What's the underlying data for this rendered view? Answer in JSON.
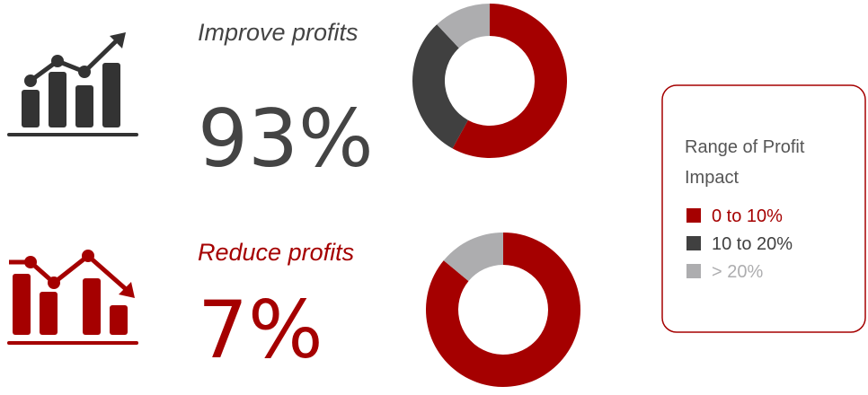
{
  "legend": {
    "title": "Range of Profit Impact",
    "items": [
      "0 to 10%",
      "10 to 20%",
      "> 20%"
    ],
    "colors": [
      "#a50000",
      "#404040",
      "#adadaf"
    ]
  },
  "panels": [
    {
      "heading": "Improve profits",
      "share": "93%",
      "chart_data": {
        "type": "pie",
        "values": [
          58,
          30,
          12
        ]
      }
    },
    {
      "heading": "Reduce profits",
      "share": "7%",
      "chart_data": {
        "type": "pie",
        "values": [
          86,
          0,
          14
        ]
      }
    }
  ]
}
